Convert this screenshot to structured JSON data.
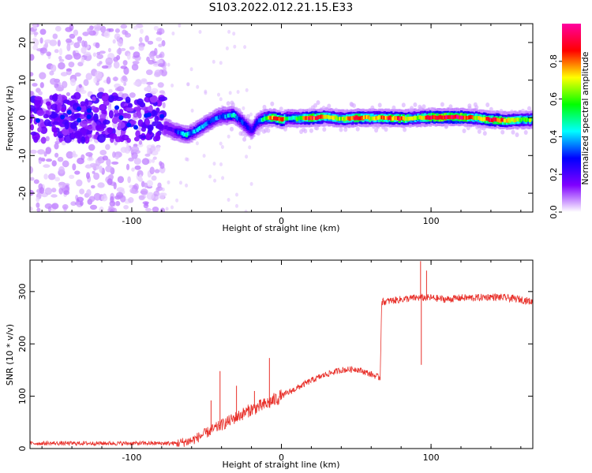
{
  "figure": {
    "title": "S103.2022.012.21.15.E33"
  },
  "chart_data": [
    {
      "type": "heatmap",
      "title": "S103.2022.012.21.15.E33",
      "xlabel": "Height of straight line (km)",
      "ylabel": "Frequency (Hz)",
      "xlim": [
        -168,
        168
      ],
      "ylim": [
        -25,
        25
      ],
      "xticks": [
        -100,
        0,
        100
      ],
      "yticks": [
        -20,
        -10,
        0,
        10,
        20
      ],
      "colorbar": {
        "label": "Normalized spectral amplitude",
        "range": [
          0,
          1
        ],
        "ticks": [
          0.0,
          0.2,
          0.4,
          0.6,
          0.8
        ],
        "colors": [
          "#ffffff",
          "#8000ff",
          "#0000ff",
          "#00ffff",
          "#00ff00",
          "#ffff00",
          "#ff0000",
          "#ff00a0"
        ]
      },
      "ridge": {
        "x": [
          -78,
          -72,
          -68,
          -64,
          -60,
          -56,
          -52,
          -48,
          -44,
          -40,
          -36,
          -32,
          -28,
          -24,
          -20,
          -17,
          -14,
          -10,
          -5,
          0,
          5,
          10,
          20,
          30,
          40,
          50,
          60,
          70,
          80,
          90,
          100,
          110,
          120,
          130,
          140,
          150,
          160,
          168
        ],
        "f": [
          -2.5,
          -3.5,
          -4,
          -4.5,
          -4,
          -3,
          -2,
          -1,
          0,
          0.5,
          0.5,
          0.8,
          -0.5,
          -2,
          -3.5,
          -1.5,
          -0.5,
          0,
          0,
          -0.5,
          0,
          -0.2,
          0,
          0.3,
          -0.3,
          0,
          0,
          0,
          -0.2,
          0,
          0.2,
          0.2,
          0.2,
          0,
          -0.5,
          -0.7,
          -0.5,
          -0.5
        ],
        "amp": [
          0.15,
          0.2,
          0.35,
          0.45,
          0.35,
          0.4,
          0.35,
          0.3,
          0.35,
          0.3,
          0.4,
          0.45,
          0.3,
          0.3,
          0.25,
          0.3,
          0.4,
          0.6,
          0.85,
          0.85,
          0.4,
          0.55,
          0.9,
          0.7,
          0.65,
          0.85,
          0.7,
          0.8,
          0.85,
          0.6,
          0.95,
          0.95,
          0.95,
          0.7,
          0.9,
          0.8,
          0.6,
          0.6
        ]
      },
      "noise_region": {
        "x_range": [
          -168,
          -78
        ],
        "f_range": [
          -25,
          25
        ],
        "core_band": [
          -6,
          6
        ]
      }
    },
    {
      "type": "line",
      "xlabel": "Height of straight line (km)",
      "ylabel": "SNR (10 * v/v)",
      "xlim": [
        -168,
        168
      ],
      "ylim": [
        0,
        360
      ],
      "xticks": [
        -100,
        0,
        100
      ],
      "yticks": [
        0,
        100,
        200,
        300
      ],
      "color": "#e8302a",
      "trend": {
        "x": [
          -168,
          -70,
          -60,
          -50,
          -40,
          -30,
          -20,
          -10,
          0,
          10,
          20,
          30,
          40,
          50,
          60,
          66,
          67,
          80,
          90,
          100,
          110,
          120,
          130,
          140,
          150,
          160,
          168
        ],
        "y": [
          10,
          10,
          15,
          30,
          45,
          60,
          75,
          85,
          100,
          115,
          130,
          142,
          150,
          152,
          142,
          135,
          280,
          285,
          288,
          288,
          285,
          288,
          288,
          290,
          288,
          285,
          280
        ]
      },
      "spikes": [
        {
          "x": -41,
          "y": 148
        },
        {
          "x": -47,
          "y": 92
        },
        {
          "x": -30,
          "y": 120
        },
        {
          "x": -8,
          "y": 173
        },
        {
          "x": -18,
          "y": 110
        },
        {
          "x": 93,
          "y": 358
        },
        {
          "x": 93.5,
          "y": 160
        },
        {
          "x": 97,
          "y": 340
        }
      ]
    }
  ]
}
